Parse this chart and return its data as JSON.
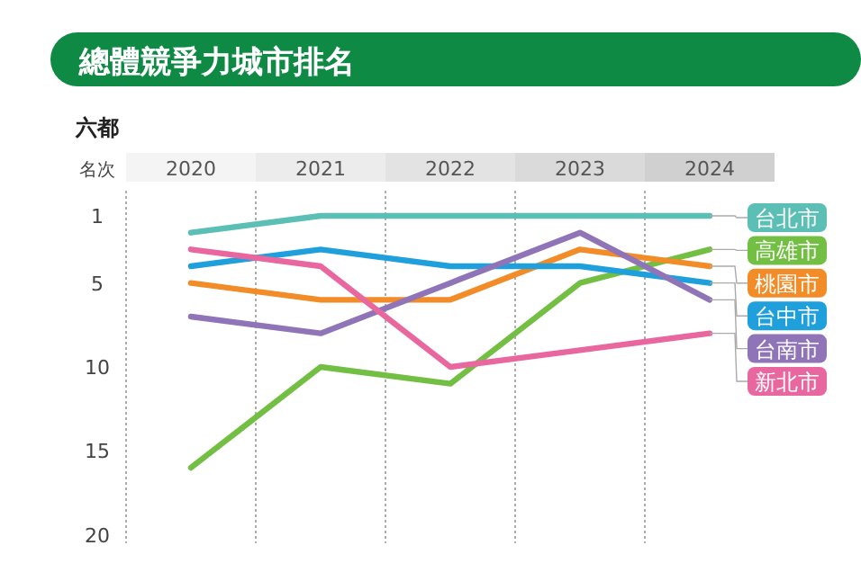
{
  "chart_data": {
    "type": "line",
    "title": "總體競爭力城市排名",
    "subtitle": "六都",
    "ylabel": "名次",
    "categories": [
      "2020",
      "2021",
      "2022",
      "2023",
      "2024"
    ],
    "ylim": [
      20.5,
      -0.5
    ],
    "yticks": [
      1,
      5,
      10,
      15,
      20
    ],
    "grid": "x",
    "legend": "right",
    "marker": "none",
    "line_style": "solid",
    "series": [
      {
        "name": "台北市",
        "color": "#5bbfb5",
        "values": [
          2,
          1,
          1,
          1,
          1
        ]
      },
      {
        "name": "高雄市",
        "color": "#72bf44",
        "values": [
          16,
          10,
          11,
          5,
          3
        ]
      },
      {
        "name": "桃園市",
        "color": "#f28c28",
        "values": [
          5,
          6,
          6,
          3,
          4
        ]
      },
      {
        "name": "台中市",
        "color": "#1fa0dc",
        "values": [
          4,
          3,
          4,
          4,
          5
        ]
      },
      {
        "name": "台南市",
        "color": "#8f74b8",
        "values": [
          7,
          8,
          5,
          2,
          6
        ]
      },
      {
        "name": "新北市",
        "color": "#e9679f",
        "values": [
          3,
          4,
          10,
          9,
          8
        ]
      }
    ]
  }
}
